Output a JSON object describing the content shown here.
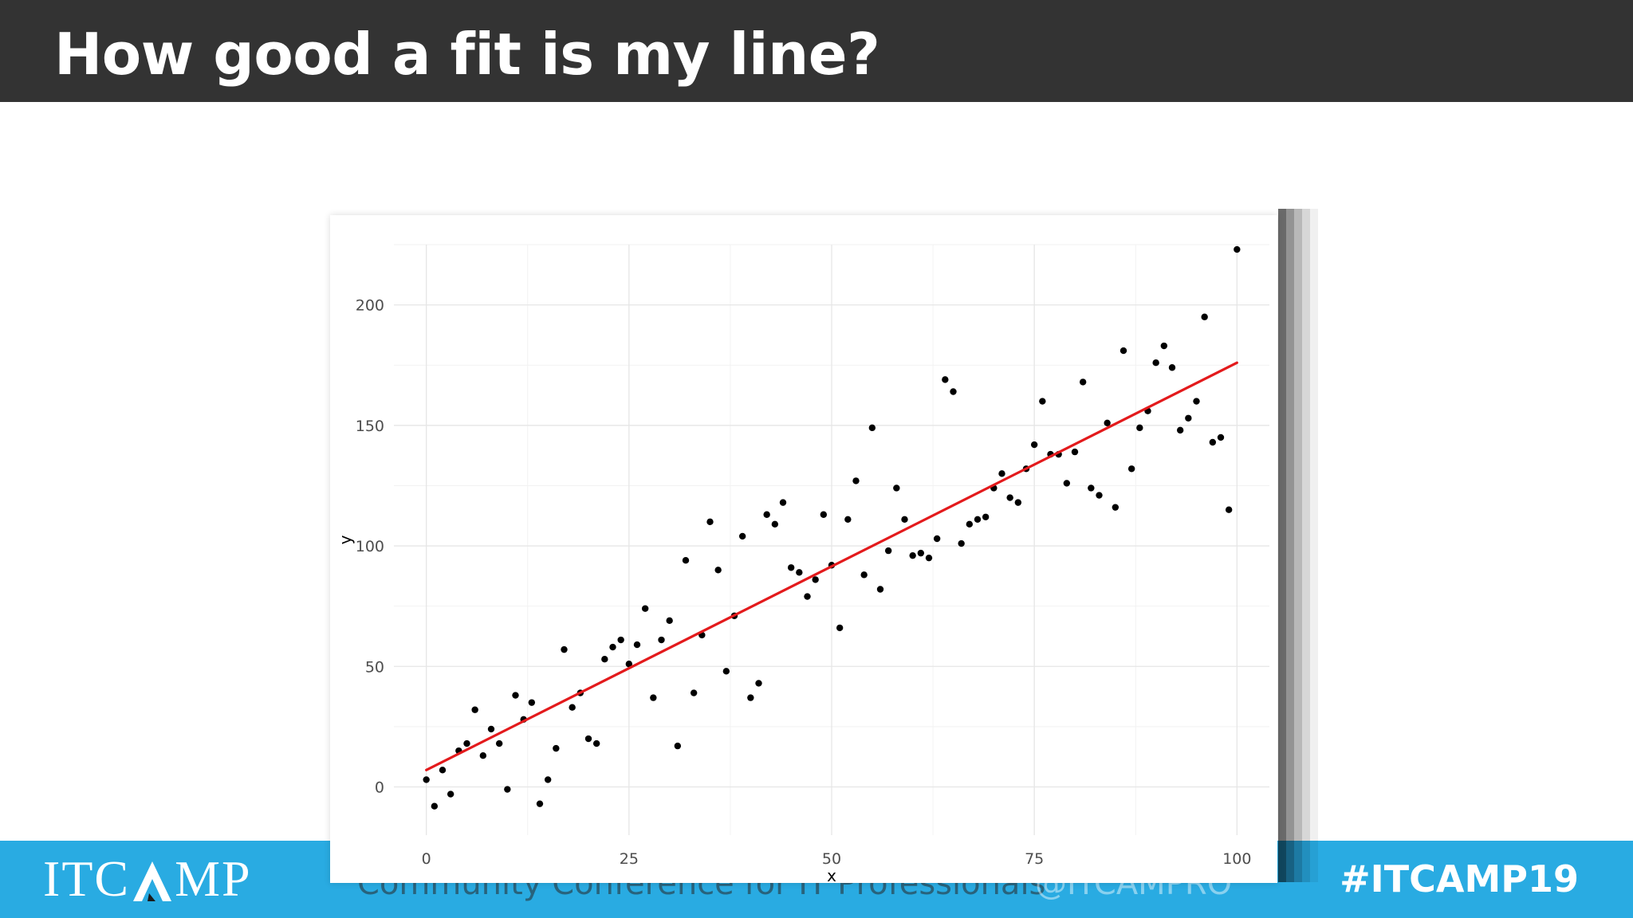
{
  "slide": {
    "title": "How good a fit is my line?",
    "hashtag": "#ITCAMP19",
    "logo_text": "ITCAMP",
    "footer_tagline": "Community Conference for IT Professionals",
    "footer_handle": "@ITCAMPRO"
  },
  "colors": {
    "title_bar": "#333333",
    "footer_bar": "#29abe2",
    "fit_line": "#e31a1c",
    "points": "#000000"
  },
  "chart_data": {
    "type": "scatter",
    "title": "",
    "xlabel": "x",
    "ylabel": "y",
    "xlim": [
      -4,
      104
    ],
    "ylim": [
      -20,
      225
    ],
    "x_ticks": [
      0,
      25,
      50,
      75,
      100
    ],
    "y_ticks": [
      0,
      50,
      100,
      150,
      200
    ],
    "grid": true,
    "legend": "none",
    "fit_line": {
      "x": [
        0,
        100
      ],
      "y": [
        7,
        176
      ]
    },
    "points": [
      [
        0,
        3
      ],
      [
        1,
        -8
      ],
      [
        2,
        7
      ],
      [
        3,
        -3
      ],
      [
        4,
        15
      ],
      [
        5,
        18
      ],
      [
        6,
        32
      ],
      [
        7,
        13
      ],
      [
        8,
        24
      ],
      [
        9,
        18
      ],
      [
        10,
        -1
      ],
      [
        11,
        38
      ],
      [
        12,
        28
      ],
      [
        13,
        35
      ],
      [
        14,
        -7
      ],
      [
        15,
        3
      ],
      [
        16,
        16
      ],
      [
        17,
        57
      ],
      [
        18,
        33
      ],
      [
        19,
        39
      ],
      [
        20,
        20
      ],
      [
        21,
        18
      ],
      [
        22,
        53
      ],
      [
        23,
        58
      ],
      [
        24,
        61
      ],
      [
        25,
        51
      ],
      [
        26,
        59
      ],
      [
        27,
        74
      ],
      [
        28,
        37
      ],
      [
        29,
        61
      ],
      [
        30,
        69
      ],
      [
        31,
        17
      ],
      [
        32,
        94
      ],
      [
        33,
        39
      ],
      [
        34,
        63
      ],
      [
        35,
        110
      ],
      [
        36,
        90
      ],
      [
        37,
        48
      ],
      [
        38,
        71
      ],
      [
        39,
        104
      ],
      [
        40,
        37
      ],
      [
        41,
        43
      ],
      [
        42,
        113
      ],
      [
        43,
        109
      ],
      [
        44,
        118
      ],
      [
        45,
        91
      ],
      [
        46,
        89
      ],
      [
        47,
        79
      ],
      [
        48,
        86
      ],
      [
        49,
        113
      ],
      [
        50,
        92
      ],
      [
        51,
        66
      ],
      [
        52,
        111
      ],
      [
        53,
        127
      ],
      [
        54,
        88
      ],
      [
        55,
        149
      ],
      [
        56,
        82
      ],
      [
        57,
        98
      ],
      [
        58,
        124
      ],
      [
        59,
        111
      ],
      [
        60,
        96
      ],
      [
        61,
        97
      ],
      [
        62,
        95
      ],
      [
        63,
        103
      ],
      [
        64,
        169
      ],
      [
        65,
        164
      ],
      [
        66,
        101
      ],
      [
        67,
        109
      ],
      [
        68,
        111
      ],
      [
        69,
        112
      ],
      [
        70,
        124
      ],
      [
        71,
        130
      ],
      [
        72,
        120
      ],
      [
        73,
        118
      ],
      [
        74,
        132
      ],
      [
        75,
        142
      ],
      [
        76,
        160
      ],
      [
        77,
        138
      ],
      [
        78,
        138
      ],
      [
        79,
        126
      ],
      [
        80,
        139
      ],
      [
        81,
        168
      ],
      [
        82,
        124
      ],
      [
        83,
        121
      ],
      [
        84,
        151
      ],
      [
        85,
        116
      ],
      [
        86,
        181
      ],
      [
        87,
        132
      ],
      [
        88,
        149
      ],
      [
        89,
        156
      ],
      [
        90,
        176
      ],
      [
        91,
        183
      ],
      [
        92,
        174
      ],
      [
        93,
        148
      ],
      [
        94,
        153
      ],
      [
        95,
        160
      ],
      [
        96,
        195
      ],
      [
        97,
        143
      ],
      [
        98,
        145
      ],
      [
        99,
        115
      ],
      [
        100,
        223
      ]
    ]
  }
}
